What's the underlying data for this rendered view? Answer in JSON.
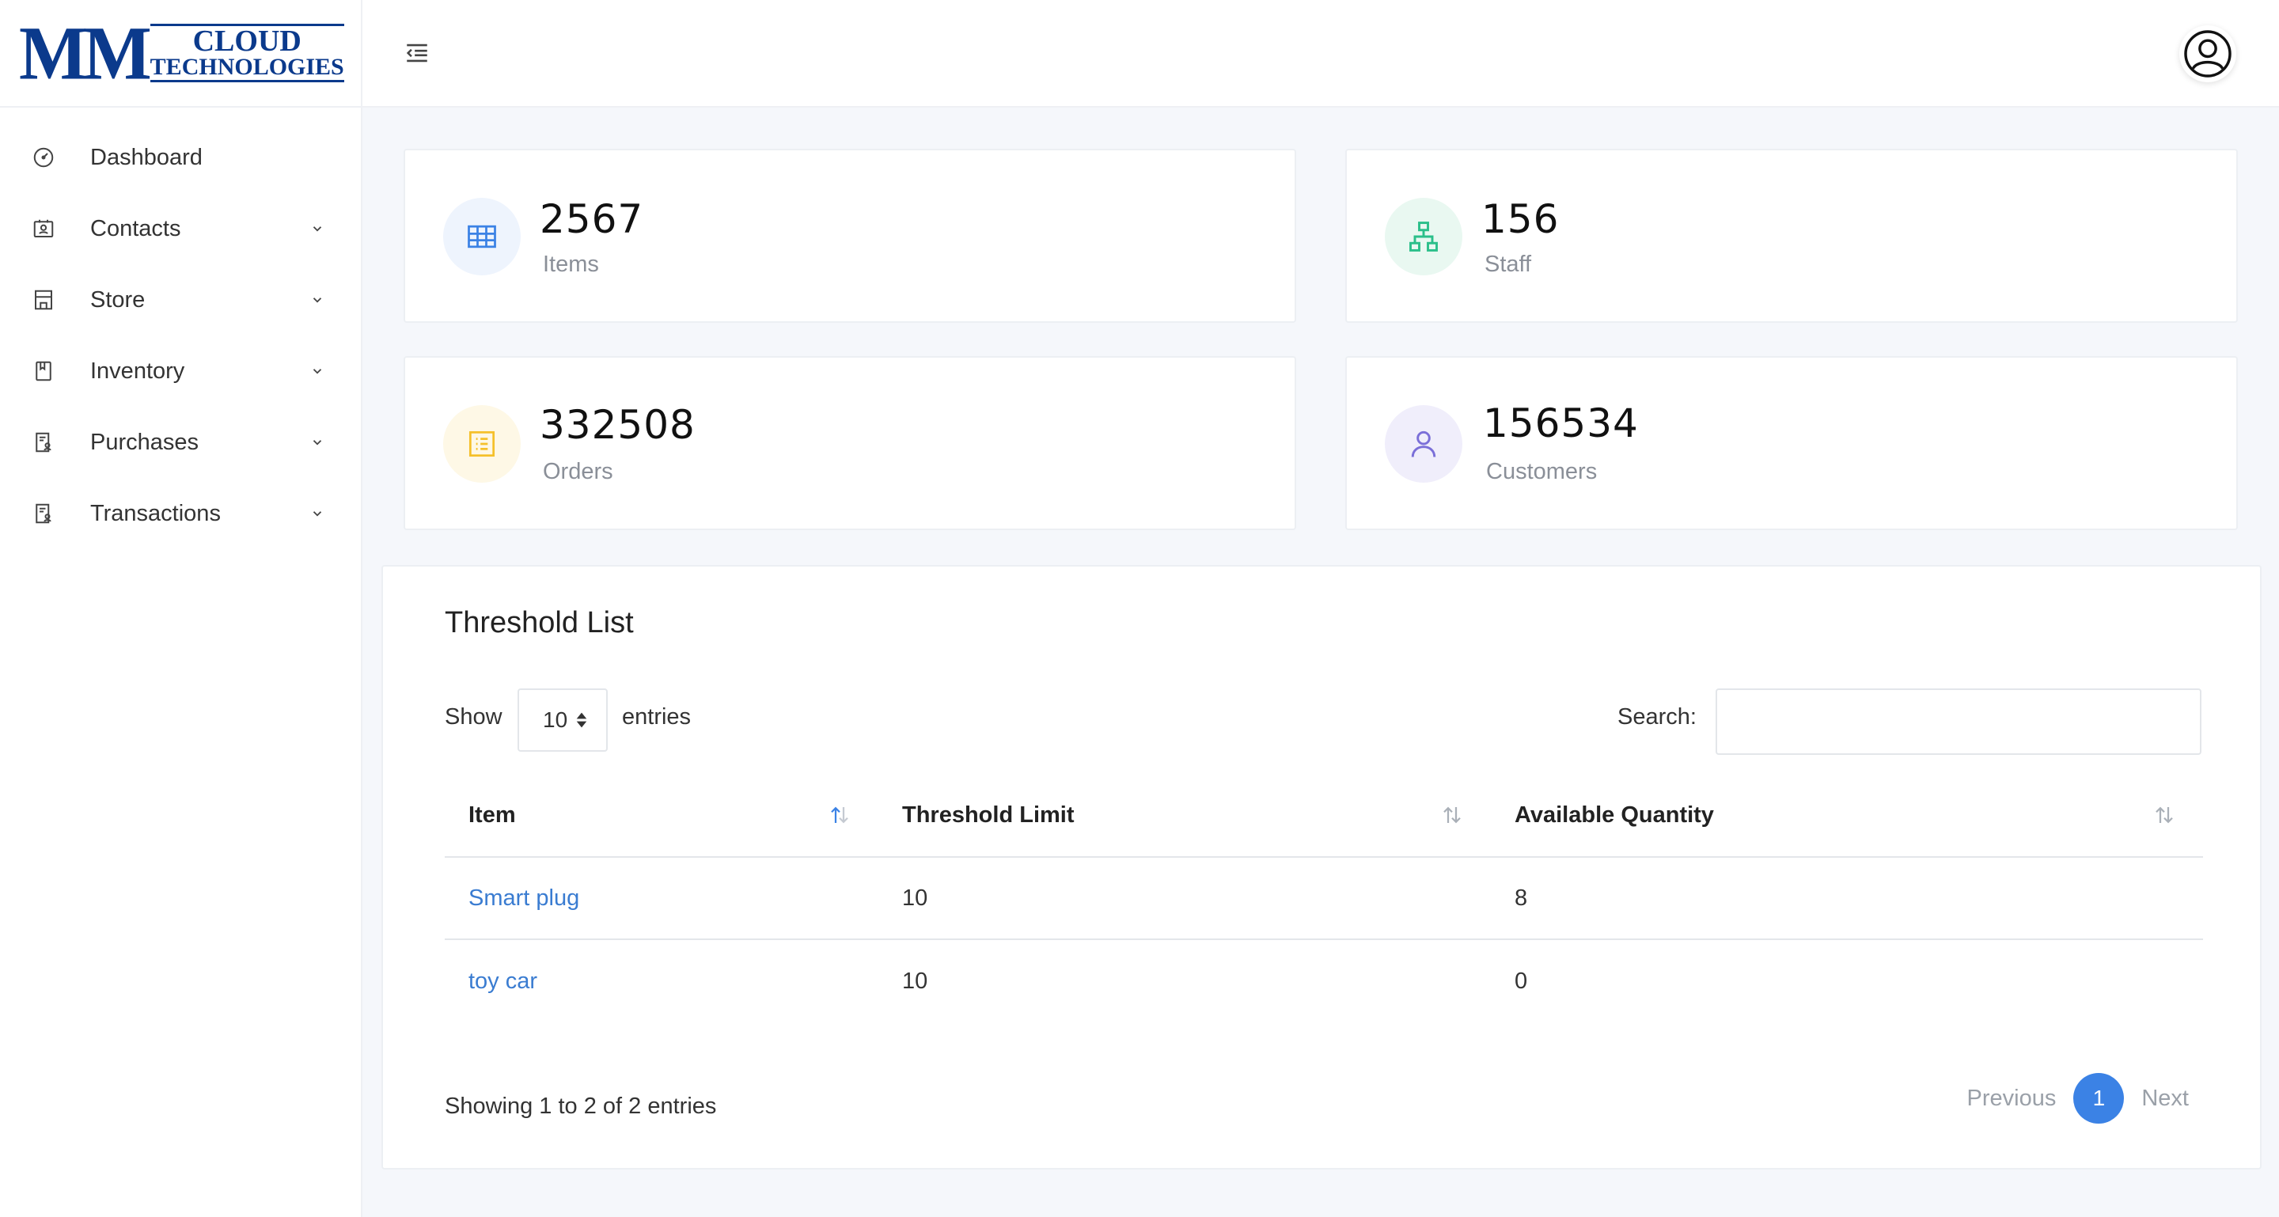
{
  "logo": {
    "line1": "CLOUD",
    "line2": "TECHNOLOGIES",
    "mark": "MM"
  },
  "sidebar": {
    "items": [
      {
        "label": "Dashboard",
        "icon": "gauge-icon"
      },
      {
        "label": "Contacts",
        "icon": "contact-card-icon"
      },
      {
        "label": "Store",
        "icon": "store-icon"
      },
      {
        "label": "Inventory",
        "icon": "book-icon"
      },
      {
        "label": "Purchases",
        "icon": "receipt-user-icon"
      },
      {
        "label": "Transactions",
        "icon": "receipt-user-icon"
      }
    ]
  },
  "stats": {
    "items": {
      "value": "2567",
      "label": "Items",
      "color": "#3b82e5",
      "bg": "#eef4fd"
    },
    "staff": {
      "value": "156",
      "label": "Staff",
      "color": "#2bbf8a",
      "bg": "#e9f8f1"
    },
    "orders": {
      "value": "332508",
      "label": "Orders",
      "color": "#f5c02a",
      "bg": "#fef8e6"
    },
    "customers": {
      "value": "156534",
      "label": "Customers",
      "color": "#7b6fd8",
      "bg": "#f0eefb"
    }
  },
  "threshold": {
    "title": "Threshold List",
    "show_label": "Show",
    "entries_value": "10",
    "entries_label": "entries",
    "search_label": "Search:",
    "search_value": "",
    "columns": [
      "Item",
      "Threshold Limit",
      "Available Quantity"
    ],
    "rows": [
      {
        "item": "Smart plug",
        "limit": "10",
        "qty": "8"
      },
      {
        "item": "toy car",
        "limit": "10",
        "qty": "0"
      }
    ],
    "showing": "Showing 1 to 2 of 2 entries",
    "pagination": {
      "prev": "Previous",
      "current": "1",
      "next": "Next"
    }
  }
}
